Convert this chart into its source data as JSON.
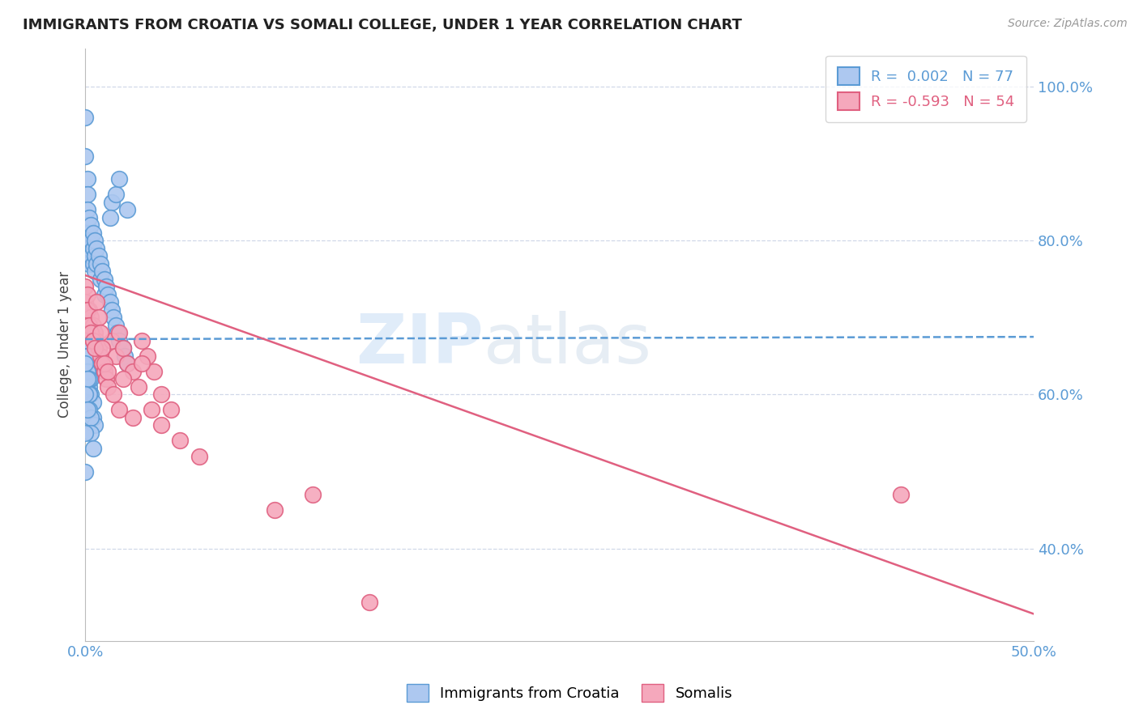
{
  "title": "IMMIGRANTS FROM CROATIA VS SOMALI COLLEGE, UNDER 1 YEAR CORRELATION CHART",
  "source_text": "Source: ZipAtlas.com",
  "ylabel": "College, Under 1 year",
  "xlim": [
    0.0,
    0.5
  ],
  "ylim": [
    0.28,
    1.05
  ],
  "xtick_positions": [
    0.0,
    0.05,
    0.1,
    0.15,
    0.2,
    0.25,
    0.3,
    0.35,
    0.4,
    0.45,
    0.5
  ],
  "xtick_labels": [
    "0.0%",
    "",
    "",
    "",
    "",
    "",
    "",
    "",
    "",
    "",
    "50.0%"
  ],
  "ytick_positions": [
    0.4,
    0.6,
    0.8,
    1.0
  ],
  "ytick_labels": [
    "40.0%",
    "60.0%",
    "80.0%",
    "100.0%"
  ],
  "watermark_zip": "ZIP",
  "watermark_atlas": "atlas",
  "croatia_R": "0.002",
  "croatia_N": "77",
  "somali_R": "-0.593",
  "somali_N": "54",
  "croatia_color": "#adc8f0",
  "somali_color": "#f5a8bc",
  "croatia_edge_color": "#5b9bd5",
  "somali_edge_color": "#e06080",
  "croatia_line_color": "#5b9bd5",
  "somali_line_color": "#e06080",
  "grid_color": "#d0d8e8",
  "title_color": "#222222",
  "axis_label_color": "#444444",
  "tick_color": "#5b9bd5",
  "source_color": "#999999",
  "croatia_line_y0": 0.672,
  "croatia_line_y1": 0.675,
  "somali_line_y0": 0.755,
  "somali_line_y1": 0.315,
  "croatia_pts_x": [
    0.0,
    0.0,
    0.001,
    0.001,
    0.001,
    0.001,
    0.001,
    0.001,
    0.002,
    0.002,
    0.002,
    0.002,
    0.003,
    0.003,
    0.003,
    0.004,
    0.004,
    0.004,
    0.005,
    0.005,
    0.005,
    0.006,
    0.006,
    0.007,
    0.008,
    0.008,
    0.009,
    0.01,
    0.01,
    0.011,
    0.012,
    0.013,
    0.014,
    0.015,
    0.016,
    0.017,
    0.018,
    0.02,
    0.021,
    0.022,
    0.001,
    0.001,
    0.002,
    0.002,
    0.002,
    0.003,
    0.003,
    0.004,
    0.004,
    0.005,
    0.0,
    0.0,
    0.001,
    0.001,
    0.001,
    0.002,
    0.002,
    0.003,
    0.003,
    0.004,
    0.0,
    0.001,
    0.001,
    0.001,
    0.002,
    0.002,
    0.0,
    0.001,
    0.0,
    0.001,
    0.014,
    0.016,
    0.018,
    0.013,
    0.022,
    0.0,
    0.0
  ],
  "croatia_pts_y": [
    0.96,
    0.91,
    0.88,
    0.86,
    0.84,
    0.82,
    0.8,
    0.78,
    0.83,
    0.81,
    0.79,
    0.77,
    0.82,
    0.8,
    0.78,
    0.81,
    0.79,
    0.77,
    0.8,
    0.78,
    0.76,
    0.79,
    0.77,
    0.78,
    0.77,
    0.75,
    0.76,
    0.75,
    0.73,
    0.74,
    0.73,
    0.72,
    0.71,
    0.7,
    0.69,
    0.68,
    0.67,
    0.66,
    0.65,
    0.64,
    0.68,
    0.66,
    0.65,
    0.63,
    0.61,
    0.62,
    0.6,
    0.59,
    0.57,
    0.56,
    0.72,
    0.7,
    0.67,
    0.65,
    0.63,
    0.6,
    0.58,
    0.57,
    0.55,
    0.53,
    0.67,
    0.67,
    0.65,
    0.63,
    0.62,
    0.6,
    0.64,
    0.62,
    0.6,
    0.58,
    0.85,
    0.86,
    0.88,
    0.83,
    0.84,
    0.55,
    0.5
  ],
  "somali_pts_x": [
    0.0,
    0.0,
    0.001,
    0.001,
    0.002,
    0.002,
    0.003,
    0.003,
    0.004,
    0.004,
    0.005,
    0.006,
    0.007,
    0.008,
    0.009,
    0.01,
    0.011,
    0.012,
    0.014,
    0.016,
    0.018,
    0.02,
    0.022,
    0.025,
    0.028,
    0.03,
    0.033,
    0.036,
    0.04,
    0.045,
    0.001,
    0.002,
    0.003,
    0.004,
    0.005,
    0.006,
    0.007,
    0.008,
    0.009,
    0.01,
    0.012,
    0.015,
    0.018,
    0.02,
    0.025,
    0.03,
    0.035,
    0.04,
    0.05,
    0.06,
    0.1,
    0.12,
    0.15,
    0.43
  ],
  "somali_pts_y": [
    0.74,
    0.72,
    0.73,
    0.7,
    0.71,
    0.69,
    0.7,
    0.68,
    0.69,
    0.67,
    0.68,
    0.67,
    0.66,
    0.65,
    0.64,
    0.63,
    0.62,
    0.61,
    0.67,
    0.65,
    0.68,
    0.66,
    0.64,
    0.63,
    0.61,
    0.67,
    0.65,
    0.63,
    0.6,
    0.58,
    0.71,
    0.69,
    0.68,
    0.67,
    0.66,
    0.72,
    0.7,
    0.68,
    0.66,
    0.64,
    0.63,
    0.6,
    0.58,
    0.62,
    0.57,
    0.64,
    0.58,
    0.56,
    0.54,
    0.52,
    0.45,
    0.47,
    0.33,
    0.47
  ]
}
